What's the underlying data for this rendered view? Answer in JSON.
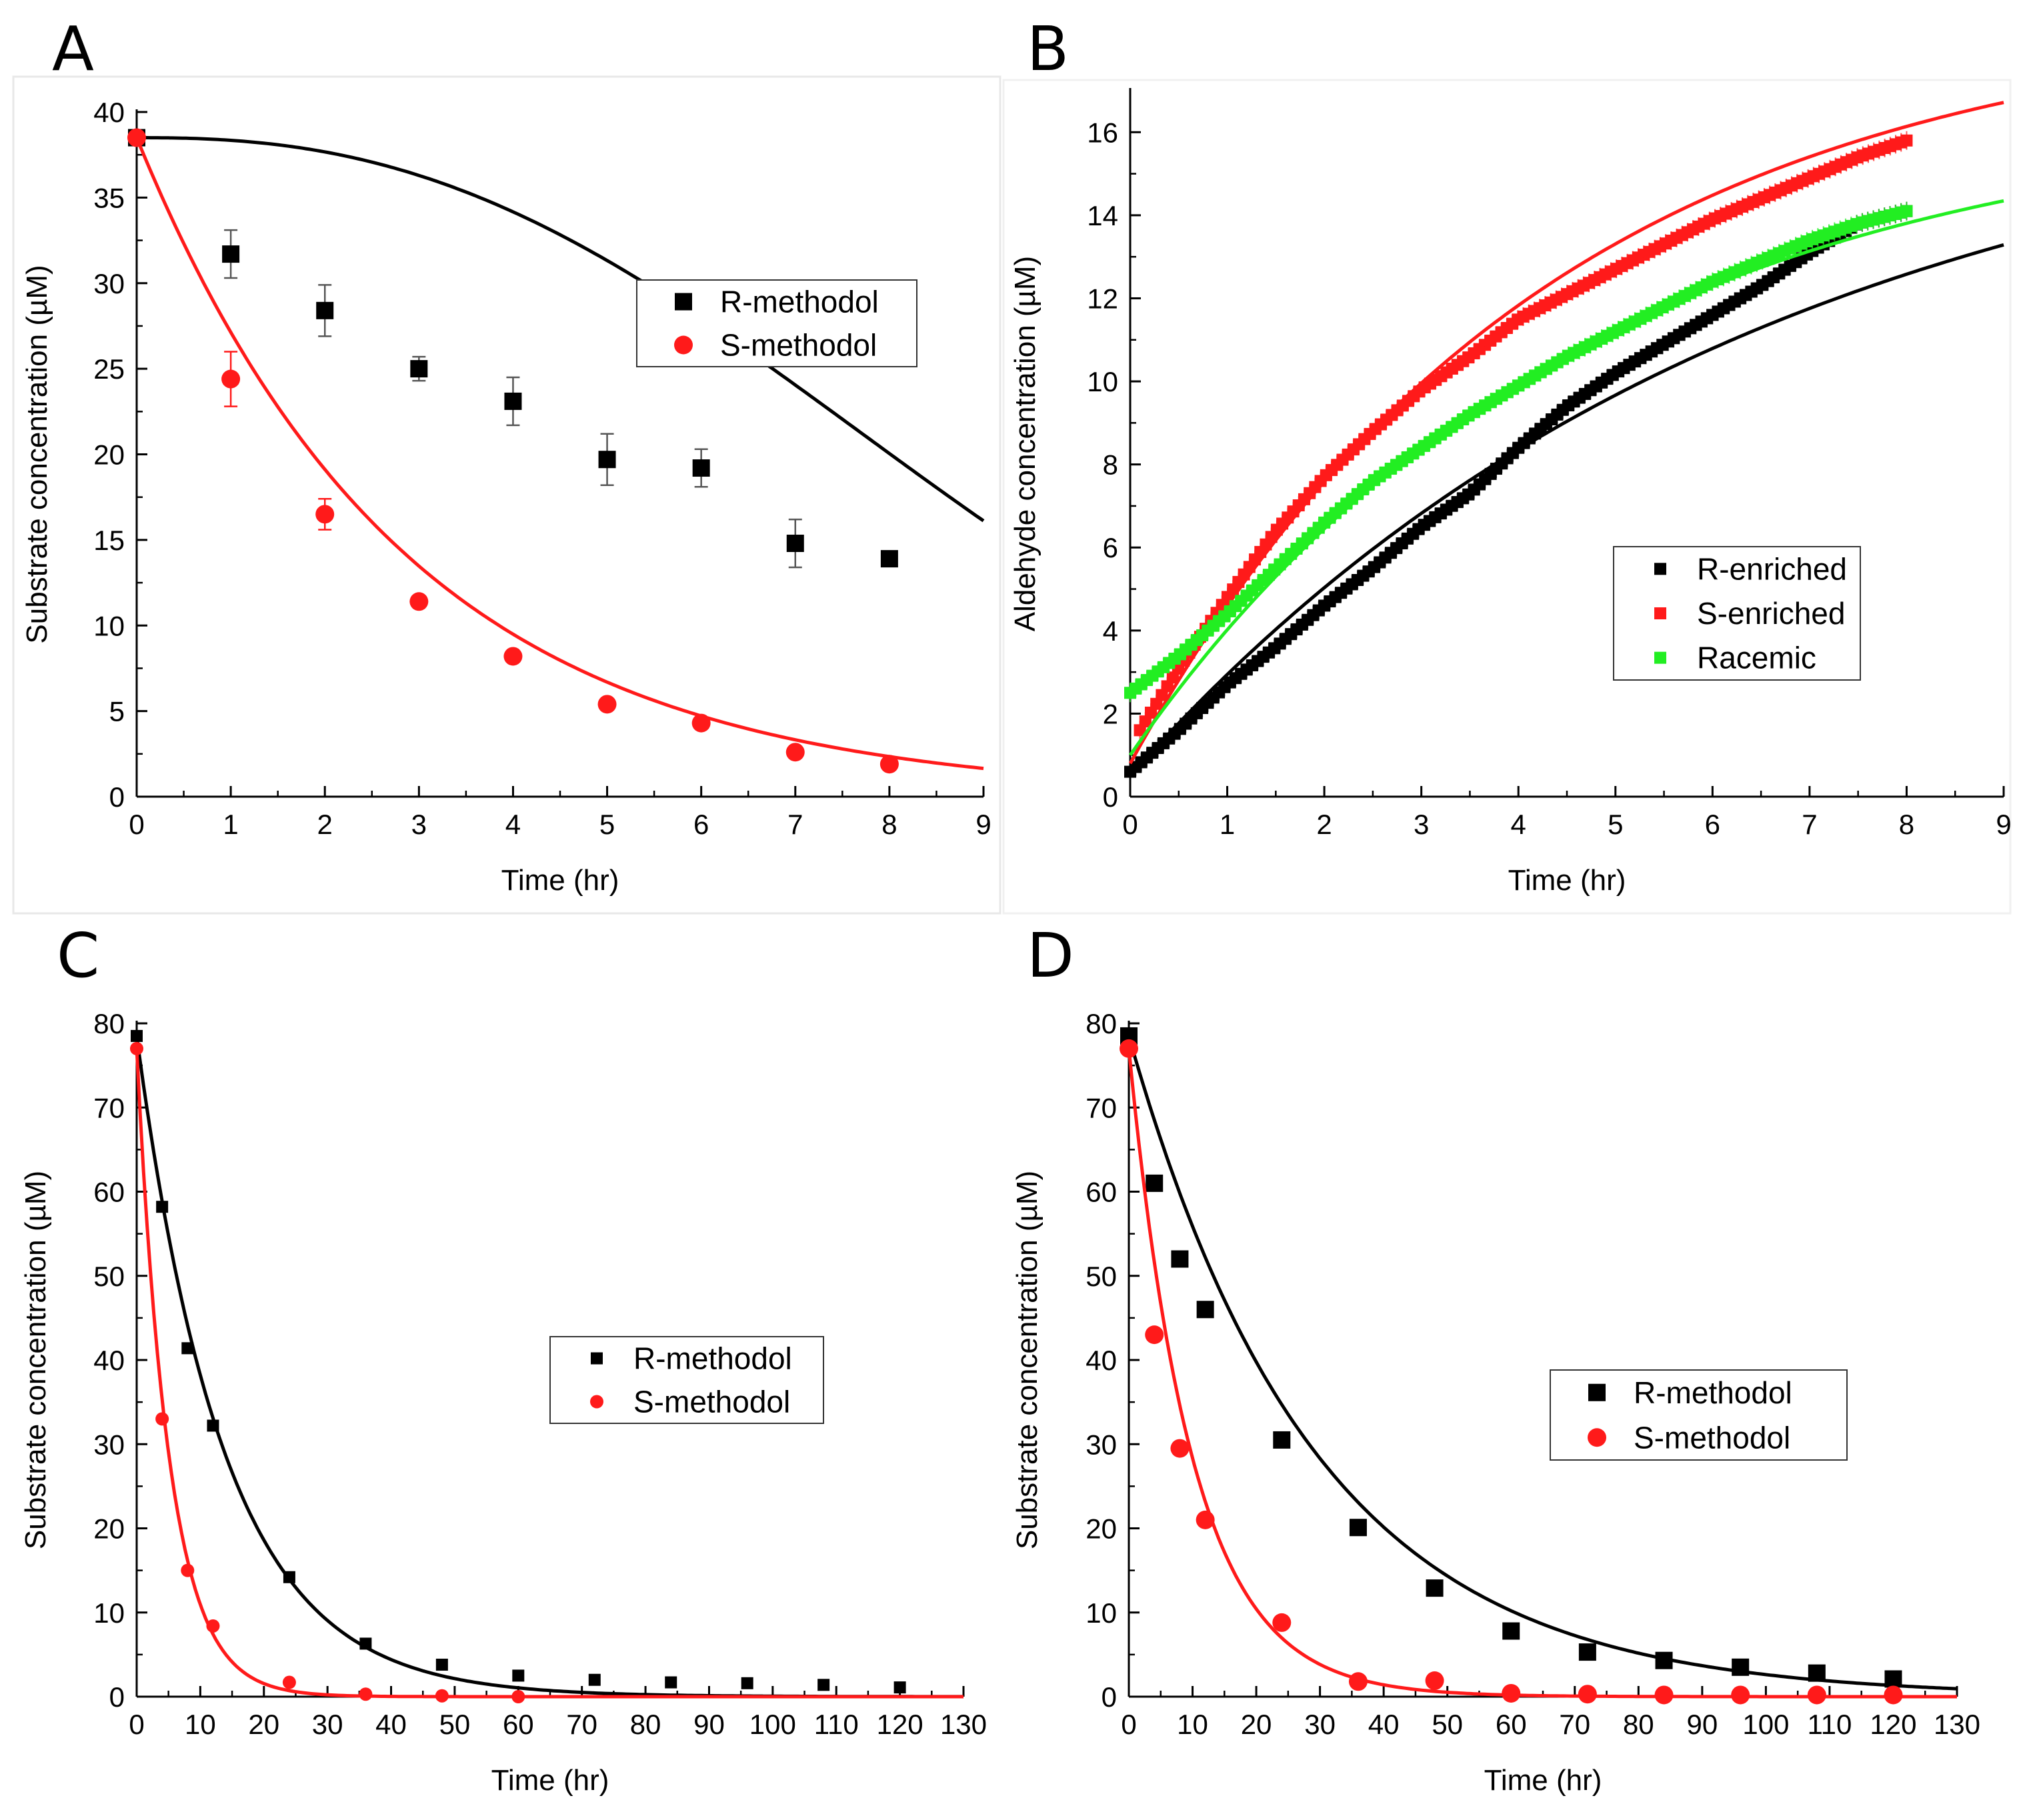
{
  "figure": {
    "panel_letters": [
      "A",
      "B",
      "C",
      "D"
    ]
  },
  "colors": {
    "black": "#000000",
    "red": "#ff1a1a",
    "green": "#22ee22",
    "axis": "#000000",
    "legend_border": "#333333"
  },
  "chart_data": [
    {
      "panel": "A",
      "type": "scatter",
      "title": "",
      "xlabel": "Time (hr)",
      "ylabel": "Substrate concentration (µM)",
      "xlim": [
        0,
        9
      ],
      "ylim": [
        0,
        40
      ],
      "xticks": [
        0,
        1,
        2,
        3,
        4,
        5,
        6,
        7,
        8,
        9
      ],
      "yticks": [
        0,
        5,
        10,
        15,
        20,
        25,
        30,
        35,
        40
      ],
      "legend_position": "upper-right",
      "series": [
        {
          "name": "R-methodol",
          "color": "#000000",
          "marker": "square",
          "x": [
            0,
            1,
            2,
            3,
            4,
            5,
            6,
            7,
            8
          ],
          "y": [
            38.5,
            31.7,
            28.4,
            25.0,
            23.1,
            19.7,
            19.2,
            14.8,
            13.9
          ],
          "err": [
            0,
            1.4,
            1.5,
            0.7,
            1.4,
            1.5,
            1.1,
            1.4,
            0
          ],
          "fit": {
            "kind": "sigmoid_decay",
            "a": 38.5,
            "k": 0.004,
            "m": 2.45
          }
        },
        {
          "name": "S-methodol",
          "color": "#ff1a1a",
          "marker": "circle",
          "x": [
            0,
            1,
            2,
            3,
            4,
            5,
            6,
            7,
            8
          ],
          "y": [
            38.5,
            24.4,
            16.5,
            11.4,
            8.2,
            5.4,
            4.3,
            2.6,
            1.9
          ],
          "err": [
            0,
            1.6,
            0.9,
            0,
            0,
            0,
            0,
            0,
            0
          ],
          "fit": {
            "kind": "exp_decay",
            "a": 38.5,
            "k": 0.35
          }
        }
      ]
    },
    {
      "panel": "B",
      "type": "scatter",
      "title": "",
      "xlabel": "Time (hr)",
      "ylabel": "Aldehyde concentration (µM)",
      "xlim": [
        0,
        9
      ],
      "ylim": [
        0,
        17
      ],
      "xticks": [
        0,
        1,
        2,
        3,
        4,
        5,
        6,
        7,
        8,
        9
      ],
      "yticks": [
        0,
        2,
        4,
        6,
        8,
        10,
        12,
        14,
        16
      ],
      "legend_position": "center-right",
      "series": [
        {
          "name": "R-enriched",
          "color": "#000000",
          "marker": "small-square",
          "x": [
            0,
            0.5,
            1,
            1.5,
            2,
            2.5,
            3,
            3.5,
            4,
            4.5,
            5,
            5.5,
            6,
            6.5,
            7,
            7.5,
            8
          ],
          "y": [
            0.6,
            1.6,
            2.7,
            3.6,
            4.6,
            5.5,
            6.5,
            7.3,
            8.4,
            9.4,
            10.2,
            10.9,
            11.6,
            12.3,
            13.1,
            13.8,
            14.1
          ],
          "fit": {
            "kind": "saturation",
            "a": 17.5,
            "k": 0.155,
            "c": 0.5
          }
        },
        {
          "name": "S-enriched",
          "color": "#ff1a1a",
          "marker": "small-square",
          "x": [
            0.1,
            0.5,
            1,
            1.5,
            2,
            2.5,
            3,
            3.5,
            4,
            4.5,
            5,
            5.5,
            6,
            6.5,
            7,
            7.5,
            8
          ],
          "y": [
            1.6,
            3.1,
            4.8,
            6.4,
            7.7,
            8.8,
            9.8,
            10.6,
            11.5,
            12.1,
            12.7,
            13.3,
            13.9,
            14.4,
            14.9,
            15.4,
            15.8
          ],
          "fit": {
            "kind": "saturation",
            "a": 18.9,
            "k": 0.235,
            "c": 0.8
          }
        },
        {
          "name": "Racemic",
          "color": "#22ee22",
          "marker": "small-square",
          "x": [
            0,
            0.5,
            1,
            1.5,
            2,
            2.5,
            3,
            3.5,
            4,
            4.5,
            5,
            5.5,
            6,
            6.5,
            7,
            7.5,
            8
          ],
          "y": [
            2.5,
            3.4,
            4.4,
            5.5,
            6.6,
            7.6,
            8.4,
            9.2,
            9.9,
            10.6,
            11.2,
            11.8,
            12.4,
            12.9,
            13.4,
            13.8,
            14.1
          ],
          "fit": {
            "kind": "saturation",
            "a": 16.6,
            "k": 0.215,
            "c": 1.0
          }
        }
      ]
    },
    {
      "panel": "C",
      "type": "scatter",
      "title": "",
      "xlabel": "Time (hr)",
      "ylabel": "Substrate concentration (µM)",
      "xlim": [
        0,
        130
      ],
      "ylim": [
        0,
        80
      ],
      "xticks": [
        0,
        10,
        20,
        30,
        40,
        50,
        60,
        70,
        80,
        90,
        100,
        110,
        120,
        130
      ],
      "yticks": [
        0,
        10,
        20,
        30,
        40,
        50,
        60,
        70,
        80
      ],
      "legend_position": "center-right",
      "series": [
        {
          "name": "R-methodol",
          "color": "#000000",
          "marker": "small-square",
          "x": [
            0,
            4,
            8,
            12,
            24,
            36,
            48,
            60,
            72,
            84,
            96,
            108,
            120
          ],
          "y": [
            78.5,
            58.2,
            41.4,
            32.2,
            14.2,
            6.3,
            3.8,
            2.5,
            2.0,
            1.7,
            1.6,
            1.4,
            1.1
          ],
          "fit": {
            "kind": "exp_decay",
            "a": 78.5,
            "k": 0.072
          }
        },
        {
          "name": "S-methodol",
          "color": "#ff1a1a",
          "marker": "small-circle",
          "x": [
            0,
            4,
            8,
            12,
            24,
            36,
            48,
            60
          ],
          "y": [
            77,
            33,
            15,
            8.4,
            1.7,
            0.3,
            0.1,
            0
          ],
          "fit": {
            "kind": "exp_decay",
            "a": 77,
            "k": 0.195
          }
        }
      ]
    },
    {
      "panel": "D",
      "type": "scatter",
      "title": "",
      "xlabel": "Time (hr)",
      "ylabel": "Substrate concentration (µM)",
      "xlim": [
        0,
        130
      ],
      "ylim": [
        0,
        80
      ],
      "xticks": [
        0,
        10,
        20,
        30,
        40,
        50,
        60,
        70,
        80,
        90,
        100,
        110,
        120,
        130
      ],
      "yticks": [
        0,
        10,
        20,
        30,
        40,
        50,
        60,
        70,
        80
      ],
      "legend_position": "center-right",
      "series": [
        {
          "name": "R-methodol",
          "color": "#000000",
          "marker": "square",
          "x": [
            0,
            4,
            8,
            12,
            24,
            36,
            48,
            60,
            72,
            84,
            96,
            108,
            120
          ],
          "y": [
            78.5,
            61,
            52,
            46,
            30.5,
            20.1,
            12.9,
            7.8,
            5.3,
            4.3,
            3.5,
            2.8,
            2.1
          ],
          "fit": {
            "kind": "exp_decay",
            "a": 78.5,
            "k": 0.034
          }
        },
        {
          "name": "S-methodol",
          "color": "#ff1a1a",
          "marker": "circle",
          "x": [
            0,
            4,
            8,
            12,
            24,
            36,
            48,
            60,
            72,
            84,
            96,
            108,
            120
          ],
          "y": [
            77,
            43,
            29.5,
            21,
            8.8,
            1.8,
            1.9,
            0.4,
            0.3,
            0.2,
            0.2,
            0.2,
            0.2
          ],
          "fit": {
            "kind": "exp_decay",
            "a": 77,
            "k": 0.1
          }
        }
      ]
    }
  ]
}
